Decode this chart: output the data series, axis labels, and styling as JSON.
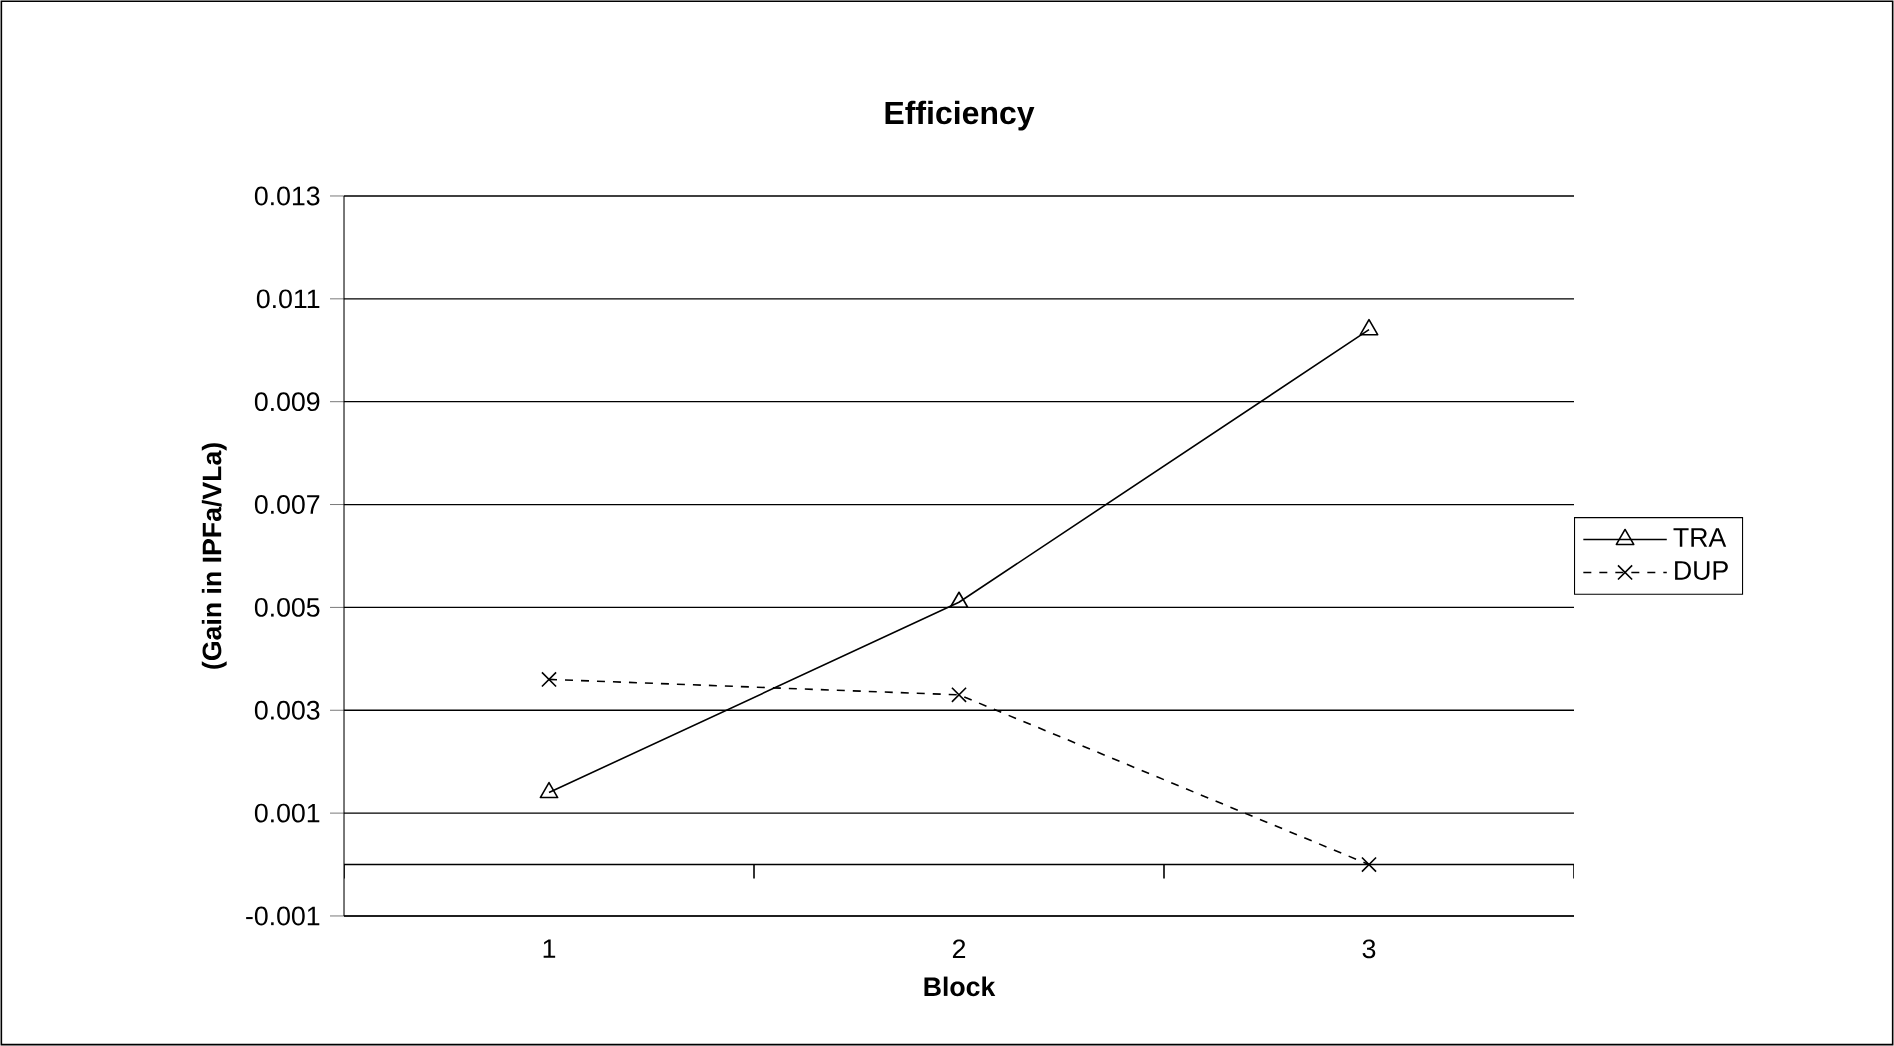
{
  "chart_data": {
    "type": "line",
    "title": "Efficiency",
    "xlabel": "Block",
    "ylabel": "(Gain in IPFa/VLa)",
    "categories": [
      "1",
      "2",
      "3"
    ],
    "series": [
      {
        "name": "TRA",
        "color": "#000000",
        "values": [
          0.0014,
          0.0051,
          0.0104
        ],
        "marker": "triangle",
        "line_style": "solid"
      },
      {
        "name": "DUP",
        "color": "#000000",
        "values": [
          0.0036,
          0.0033,
          0.0
        ],
        "marker": "cross",
        "line_style": "dashed"
      }
    ],
    "ylim": [
      -0.001,
      0.013
    ],
    "yticks": [
      -0.001,
      0.001,
      0.003,
      0.005,
      0.007,
      0.009,
      0.011,
      0.013
    ],
    "ref_lines": [
      {
        "axis": "y",
        "value": 0,
        "color": "#000000"
      }
    ],
    "grid": "y",
    "legend": "right"
  }
}
